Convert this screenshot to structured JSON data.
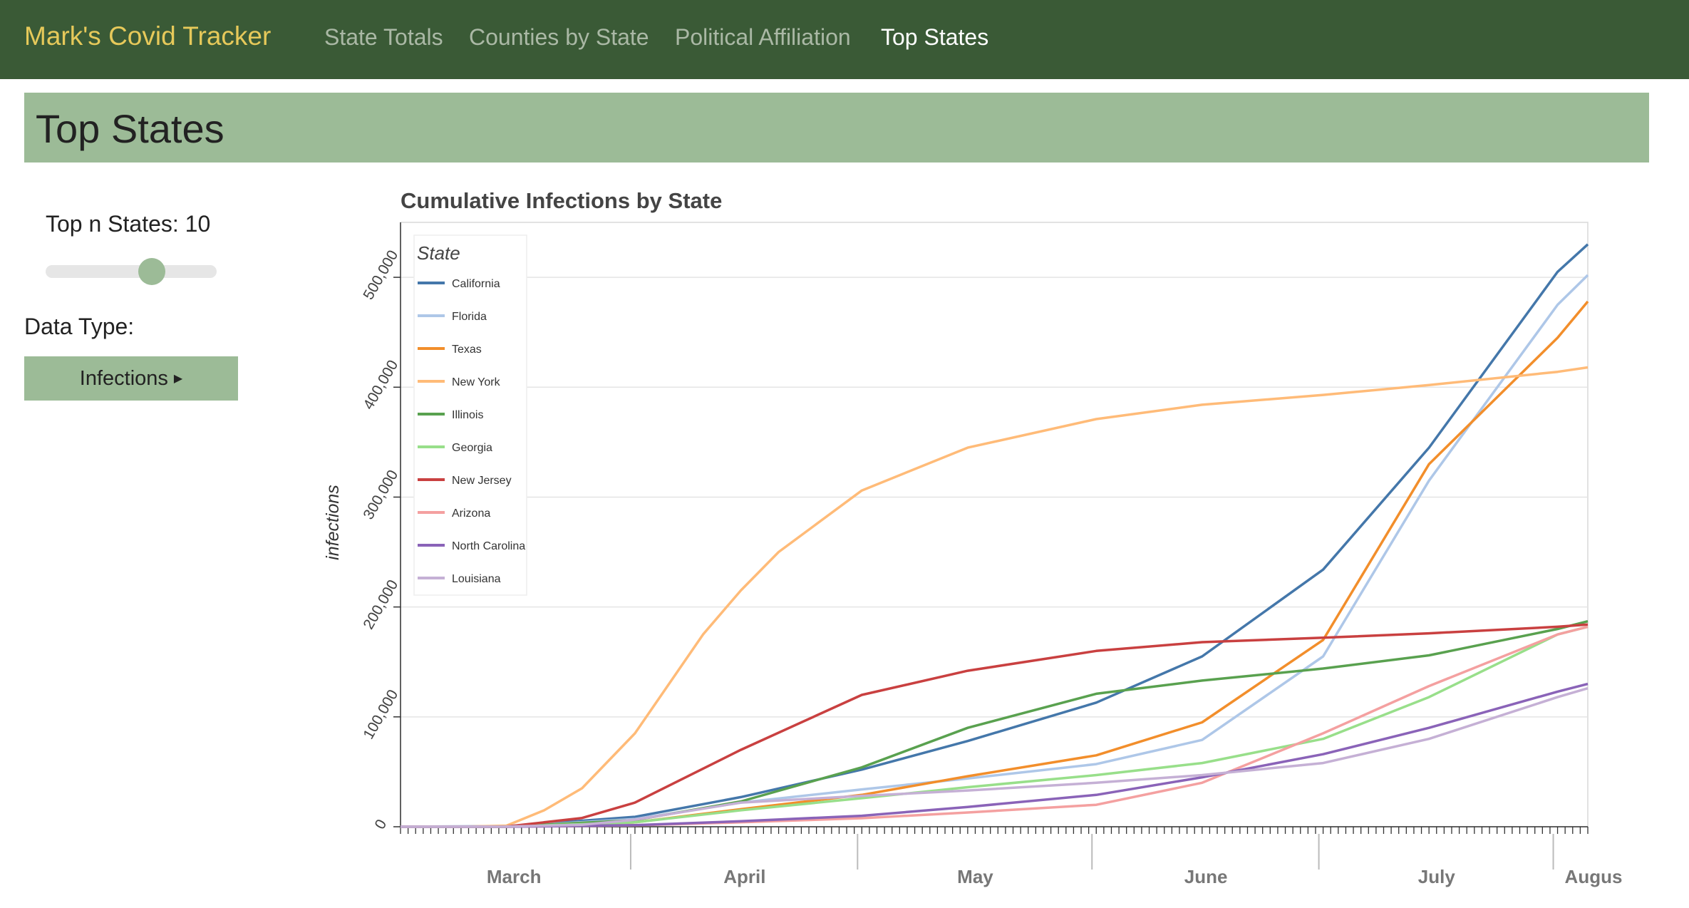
{
  "navbar": {
    "brand": "Mark's Covid Tracker",
    "links": [
      {
        "label": "State Totals",
        "active": false
      },
      {
        "label": "Counties by State",
        "active": false
      },
      {
        "label": "Political Affiliation",
        "active": false
      },
      {
        "label": "Top States",
        "active": true
      }
    ]
  },
  "page": {
    "title": "Top States"
  },
  "controls": {
    "slider_label": "Top n States: 10",
    "slider_value": 10,
    "data_type_label": "Data Type:",
    "data_type_button": "Infections"
  },
  "colors": {
    "navbar": "#3a5a36",
    "brand": "#e6c95a",
    "accent": "#9cbb97"
  },
  "chart_data": {
    "type": "line",
    "title": "Cumulative Infections by State",
    "ylabel": "infections",
    "xlabel": "",
    "yticks": [
      "0",
      "100,000",
      "200,000",
      "300,000",
      "400,000",
      "500,000"
    ],
    "ylim": [
      0,
      550000
    ],
    "x_range": [
      "2020-03-01",
      "2020-08-05"
    ],
    "month_labels": [
      {
        "label": "March",
        "start": "2020-03-01",
        "end": "2020-03-31"
      },
      {
        "label": "April",
        "start": "2020-04-01",
        "end": "2020-04-30"
      },
      {
        "label": "May",
        "start": "2020-05-01",
        "end": "2020-05-31"
      },
      {
        "label": "June",
        "start": "2020-06-01",
        "end": "2020-06-30"
      },
      {
        "label": "July",
        "start": "2020-07-01",
        "end": "2020-07-31"
      },
      {
        "label": "Augus",
        "start": "2020-08-01",
        "end": "2020-08-05"
      }
    ],
    "grid": true,
    "legend": {
      "title": "State",
      "placement": "top-left"
    },
    "series": [
      {
        "name": "California",
        "color": "#4477aa",
        "x": [
          "2020-03-01",
          "2020-03-15",
          "2020-04-01",
          "2020-04-15",
          "2020-05-01",
          "2020-05-15",
          "2020-06-01",
          "2020-06-15",
          "2020-07-01",
          "2020-07-15",
          "2020-08-01",
          "2020-08-05"
        ],
        "y": [
          50,
          400,
          9000,
          27000,
          52000,
          78000,
          113000,
          155000,
          234000,
          345000,
          505000,
          530000
        ]
      },
      {
        "name": "Florida",
        "color": "#aec7e8",
        "x": [
          "2020-03-01",
          "2020-03-15",
          "2020-04-01",
          "2020-04-15",
          "2020-05-01",
          "2020-05-15",
          "2020-06-01",
          "2020-06-15",
          "2020-07-01",
          "2020-07-15",
          "2020-08-01",
          "2020-08-05"
        ],
        "y": [
          0,
          120,
          7000,
          22000,
          34000,
          44000,
          57000,
          79000,
          155000,
          315000,
          475000,
          502000
        ]
      },
      {
        "name": "Texas",
        "color": "#f28e2b",
        "x": [
          "2020-03-01",
          "2020-03-15",
          "2020-04-01",
          "2020-04-15",
          "2020-05-01",
          "2020-05-15",
          "2020-06-01",
          "2020-06-15",
          "2020-07-01",
          "2020-07-15",
          "2020-08-01",
          "2020-08-05"
        ],
        "y": [
          0,
          60,
          4000,
          16000,
          29000,
          46000,
          65000,
          95000,
          170000,
          330000,
          445000,
          478000
        ]
      },
      {
        "name": "New York",
        "color": "#ffbb78",
        "x": [
          "2020-03-01",
          "2020-03-10",
          "2020-03-15",
          "2020-03-20",
          "2020-03-25",
          "2020-04-01",
          "2020-04-10",
          "2020-04-15",
          "2020-04-20",
          "2020-05-01",
          "2020-05-15",
          "2020-06-01",
          "2020-06-15",
          "2020-07-01",
          "2020-07-15",
          "2020-08-01",
          "2020-08-05"
        ],
        "y": [
          0,
          170,
          1000,
          15000,
          35000,
          85000,
          175000,
          215000,
          250000,
          306000,
          345000,
          371000,
          384000,
          393000,
          402000,
          414000,
          418000
        ]
      },
      {
        "name": "Illinois",
        "color": "#59a14f",
        "x": [
          "2020-03-01",
          "2020-03-15",
          "2020-04-01",
          "2020-04-15",
          "2020-05-01",
          "2020-05-15",
          "2020-06-01",
          "2020-06-15",
          "2020-07-01",
          "2020-07-15",
          "2020-08-01",
          "2020-08-05"
        ],
        "y": [
          0,
          90,
          6000,
          23000,
          54000,
          90000,
          121000,
          133000,
          144000,
          156000,
          180000,
          187000
        ]
      },
      {
        "name": "Georgia",
        "color": "#98df8a",
        "x": [
          "2020-03-01",
          "2020-03-15",
          "2020-04-01",
          "2020-04-15",
          "2020-05-01",
          "2020-05-15",
          "2020-06-01",
          "2020-06-15",
          "2020-07-01",
          "2020-07-15",
          "2020-08-01",
          "2020-08-05"
        ],
        "y": [
          0,
          60,
          4000,
          15000,
          26000,
          36000,
          47000,
          58000,
          80000,
          118000,
          175000,
          182000
        ]
      },
      {
        "name": "New Jersey",
        "color": "#c94040",
        "x": [
          "2020-03-01",
          "2020-03-15",
          "2020-03-25",
          "2020-04-01",
          "2020-04-15",
          "2020-05-01",
          "2020-05-15",
          "2020-06-01",
          "2020-06-15",
          "2020-07-01",
          "2020-07-15",
          "2020-08-01",
          "2020-08-05"
        ],
        "y": [
          0,
          100,
          8000,
          22000,
          70000,
          120000,
          142000,
          160000,
          168000,
          172000,
          176000,
          182000,
          184000
        ]
      },
      {
        "name": "Arizona",
        "color": "#f4a0a0",
        "x": [
          "2020-03-01",
          "2020-03-15",
          "2020-04-01",
          "2020-04-15",
          "2020-05-01",
          "2020-05-15",
          "2020-06-01",
          "2020-06-15",
          "2020-07-01",
          "2020-07-15",
          "2020-08-01",
          "2020-08-05"
        ],
        "y": [
          0,
          15,
          1300,
          4000,
          7800,
          13000,
          20000,
          40000,
          85000,
          128000,
          175000,
          182000
        ]
      },
      {
        "name": "North Carolina",
        "color": "#8a63b8",
        "x": [
          "2020-03-01",
          "2020-03-15",
          "2020-04-01",
          "2020-04-15",
          "2020-05-01",
          "2020-05-15",
          "2020-06-01",
          "2020-06-15",
          "2020-07-01",
          "2020-07-15",
          "2020-08-01",
          "2020-08-05"
        ],
        "y": [
          0,
          30,
          1500,
          5000,
          10000,
          18000,
          29000,
          45000,
          66000,
          90000,
          123000,
          130000
        ]
      },
      {
        "name": "Louisiana",
        "color": "#c5b0d5",
        "x": [
          "2020-03-01",
          "2020-03-15",
          "2020-03-25",
          "2020-04-01",
          "2020-04-15",
          "2020-05-01",
          "2020-05-15",
          "2020-06-01",
          "2020-06-15",
          "2020-07-01",
          "2020-07-15",
          "2020-08-01",
          "2020-08-05"
        ],
        "y": [
          0,
          100,
          1800,
          6400,
          22000,
          28000,
          33000,
          40000,
          47000,
          58000,
          80000,
          118000,
          126000
        ]
      }
    ]
  }
}
